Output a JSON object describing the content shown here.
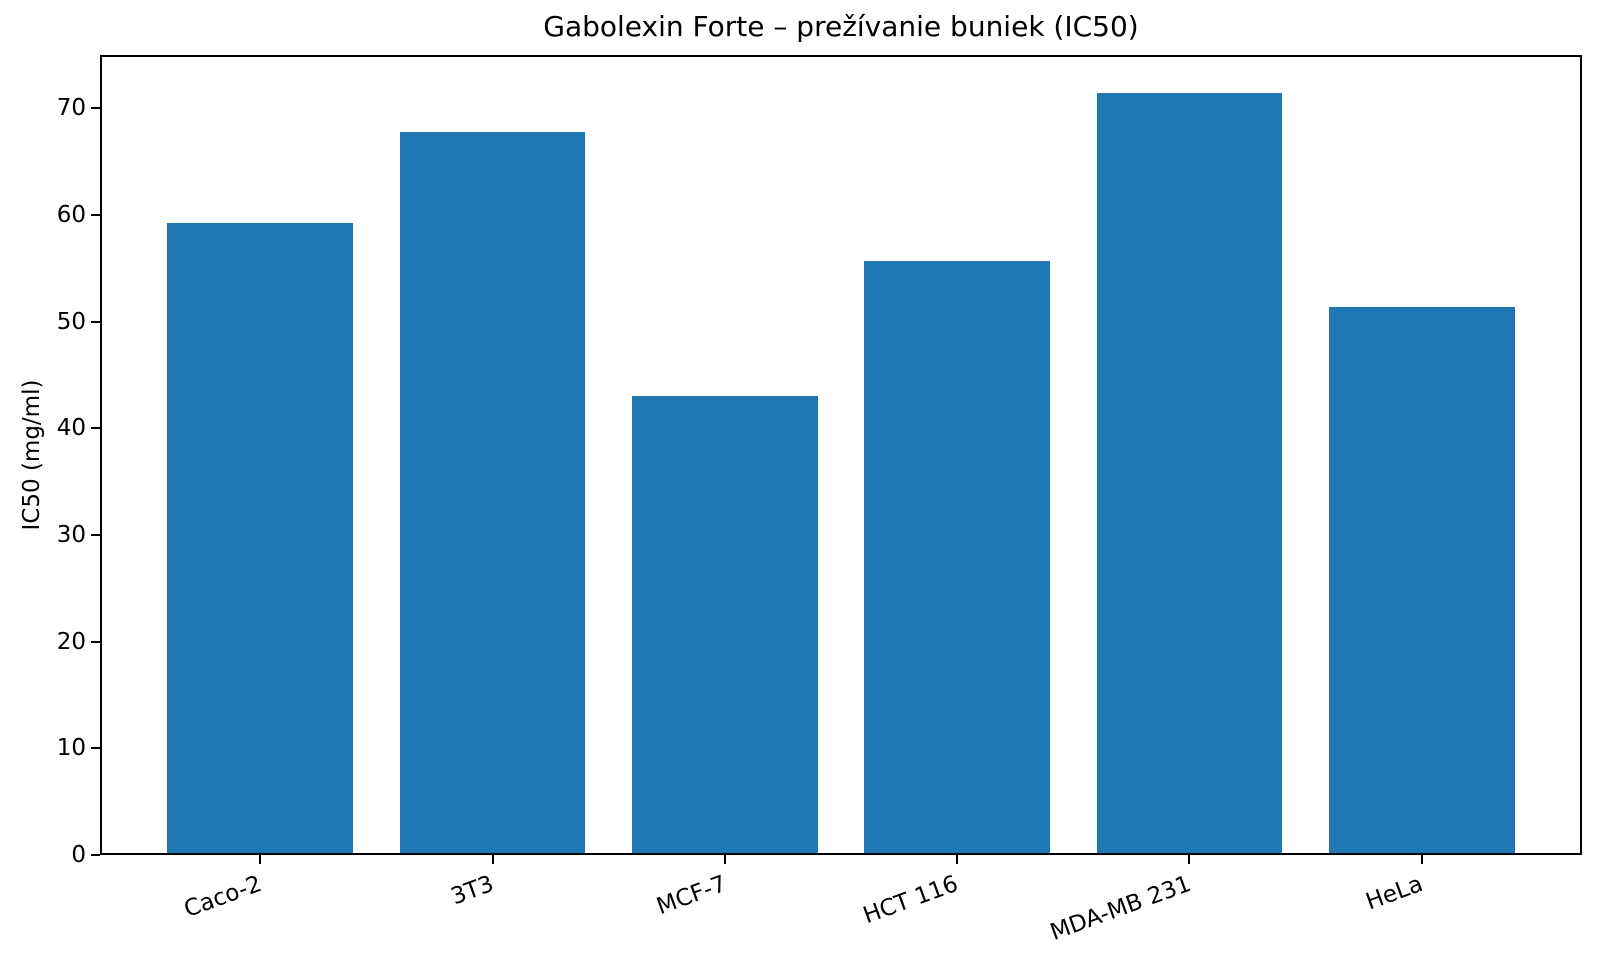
{
  "chart_data": {
    "type": "bar",
    "title": "Gabolexin Forte – prežívanie buniek (IC50)",
    "categories": [
      "Caco-2",
      "3T3",
      "MCF-7",
      "HCT 116",
      "MDA-MB 231",
      "HeLa"
    ],
    "values": [
      59.3,
      67.8,
      43.0,
      55.7,
      71.4,
      51.4
    ],
    "xlabel": "",
    "ylabel": "IC50 (mg/ml)",
    "ylim": [
      0,
      75
    ],
    "yticks": [
      0,
      10,
      20,
      30,
      40,
      50,
      60,
      70
    ],
    "bar_color": "#1f77b4",
    "axis_color": "#000000",
    "text_color": "#000000",
    "background_color": "#ffffff",
    "bar_width_fraction": 0.8,
    "x_margin_fraction": 0.05,
    "x_tick_rotation_deg": 20,
    "grid": false,
    "legend_position": "none"
  }
}
